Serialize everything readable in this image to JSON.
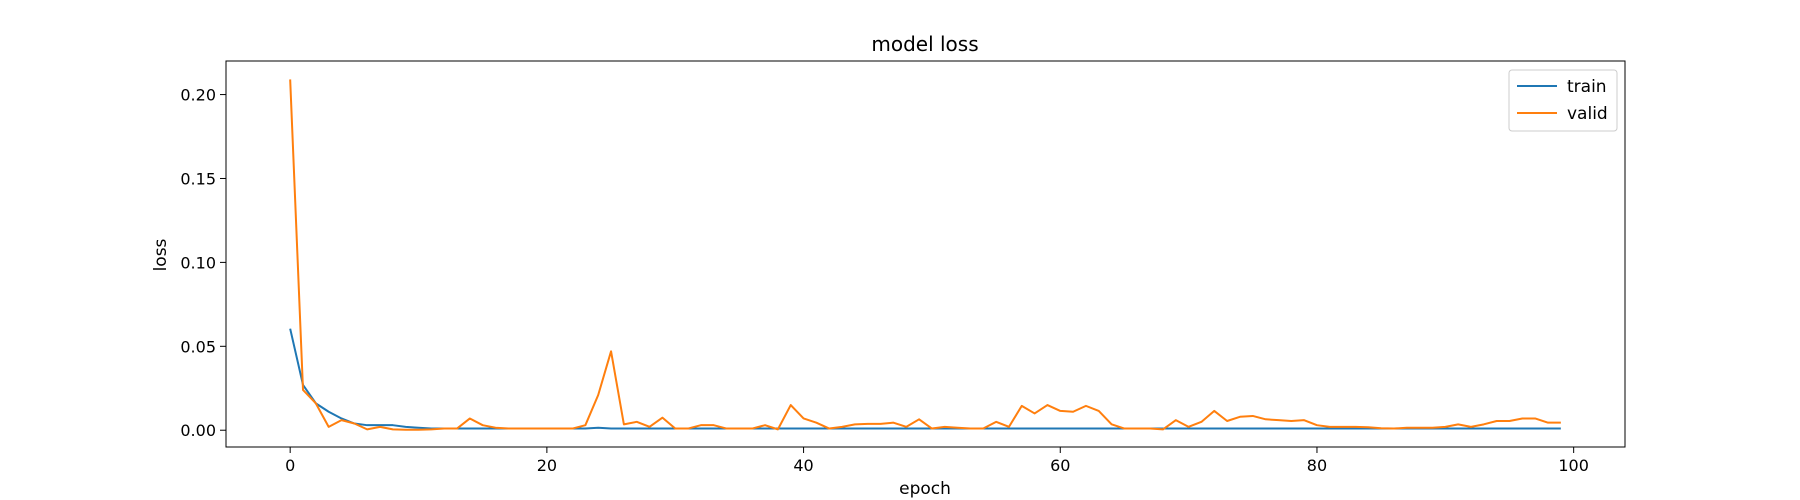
{
  "chart_data": {
    "type": "line",
    "title": "model loss",
    "xlabel": "epoch",
    "ylabel": "loss",
    "xlim": [
      -5,
      104
    ],
    "ylim": [
      -0.01,
      0.22
    ],
    "xticks": [
      0,
      20,
      40,
      60,
      80,
      100
    ],
    "yticks": [
      0.0,
      0.05,
      0.1,
      0.15,
      0.2
    ],
    "xtick_labels": [
      "0",
      "20",
      "40",
      "60",
      "80",
      "100"
    ],
    "ytick_labels": [
      "0.00",
      "0.05",
      "0.10",
      "0.15",
      "0.20"
    ],
    "grid": false,
    "legend_position": "top-right",
    "series": [
      {
        "name": "train",
        "color": "#1f77b4",
        "values": [
          0.0605,
          0.027,
          0.016,
          0.011,
          0.007,
          0.004,
          0.003,
          0.003,
          0.003,
          0.002,
          0.0015,
          0.001,
          0.001,
          0.001,
          0.001,
          0.001,
          0.001,
          0.001,
          0.001,
          0.001,
          0.001,
          0.001,
          0.001,
          0.001,
          0.0015,
          0.001,
          0.001,
          0.001,
          0.001,
          0.001,
          0.001,
          0.001,
          0.001,
          0.001,
          0.001,
          0.001,
          0.001,
          0.001,
          0.001,
          0.001,
          0.001,
          0.001,
          0.001,
          0.001,
          0.001,
          0.001,
          0.001,
          0.001,
          0.001,
          0.001,
          0.001,
          0.001,
          0.001,
          0.001,
          0.001,
          0.001,
          0.001,
          0.001,
          0.001,
          0.001,
          0.001,
          0.001,
          0.001,
          0.001,
          0.001,
          0.001,
          0.001,
          0.001,
          0.001,
          0.001,
          0.001,
          0.001,
          0.001,
          0.001,
          0.001,
          0.001,
          0.001,
          0.001,
          0.001,
          0.001,
          0.001,
          0.001,
          0.001,
          0.001,
          0.001,
          0.001,
          0.001,
          0.001,
          0.001,
          0.001,
          0.001,
          0.001,
          0.001,
          0.001,
          0.001,
          0.001,
          0.001,
          0.001,
          0.001,
          0.001
        ]
      },
      {
        "name": "valid",
        "color": "#ff7f0e",
        "values": [
          0.209,
          0.024,
          0.016,
          0.002,
          0.006,
          0.004,
          0.0005,
          0.002,
          0.0005,
          0.0003,
          0.0003,
          0.0005,
          0.001,
          0.001,
          0.007,
          0.003,
          0.0015,
          0.001,
          0.001,
          0.001,
          0.001,
          0.001,
          0.001,
          0.003,
          0.021,
          0.047,
          0.0035,
          0.005,
          0.002,
          0.0075,
          0.001,
          0.001,
          0.003,
          0.003,
          0.001,
          0.001,
          0.001,
          0.003,
          0.0005,
          0.015,
          0.007,
          0.0045,
          0.001,
          0.002,
          0.0035,
          0.0038,
          0.0038,
          0.0045,
          0.002,
          0.0065,
          0.001,
          0.002,
          0.0015,
          0.001,
          0.001,
          0.005,
          0.002,
          0.0145,
          0.01,
          0.015,
          0.0115,
          0.011,
          0.0145,
          0.0115,
          0.0035,
          0.001,
          0.001,
          0.001,
          0.0005,
          0.006,
          0.002,
          0.005,
          0.0115,
          0.0055,
          0.008,
          0.0085,
          0.0065,
          0.006,
          0.0055,
          0.006,
          0.003,
          0.002,
          0.002,
          0.002,
          0.0018,
          0.0012,
          0.001,
          0.0015,
          0.0015,
          0.0015,
          0.002,
          0.0035,
          0.002,
          0.0035,
          0.0055,
          0.0055,
          0.007,
          0.007,
          0.0045,
          0.0045
        ]
      }
    ]
  }
}
